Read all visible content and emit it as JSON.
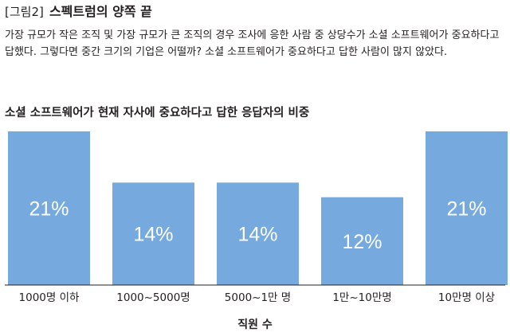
{
  "figure": {
    "tag": "[그림2]",
    "title": "스펙트럼의 양쪽 끝",
    "description": "가장 규모가 작은 조직 및 가장 규모가 큰 조직의 경우 조사에 응한 사람 중 상당수가 소셜 소프트웨어가 중요하다고 답했다. 그렇다면 중간 크기의 기업은 어떨까? 소셜 소프트웨어가 중요하다고 답한 사람이 많지 않았다."
  },
  "chart_data": {
    "type": "bar",
    "title": "소셜 소프트웨어가 현재 자사에 중요하다고 답한 응답자의 비중",
    "xlabel": "직원 수",
    "ylabel": "",
    "categories": [
      "1000명 이하",
      "1000~5000명",
      "5000~1만 명",
      "1만~10만명",
      "10만명 이상"
    ],
    "values": [
      21,
      14,
      14,
      12,
      21
    ],
    "value_labels": [
      "21%",
      "14%",
      "14%",
      "12%",
      "21%"
    ],
    "ylim": [
      0,
      21
    ],
    "grid": false,
    "bar_color": "#76aadf"
  }
}
